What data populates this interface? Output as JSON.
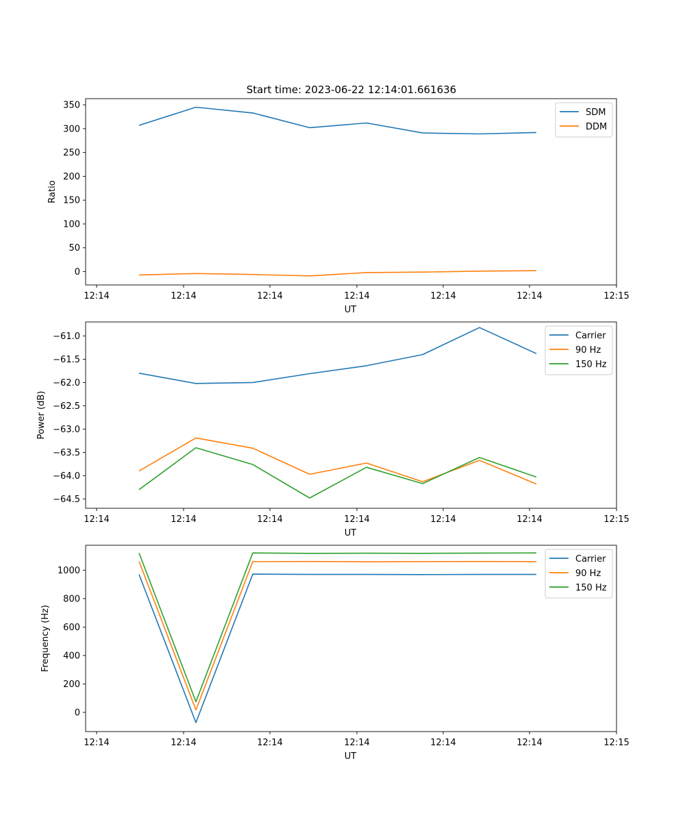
{
  "figure": {
    "title": "Start time: 2023-06-22 12:14:01.661636"
  },
  "colors": {
    "blue": "#1f77b4",
    "orange": "#ff7f0e",
    "green": "#2ca02c"
  },
  "chart_data": [
    {
      "type": "line",
      "title": "Start time: 2023-06-22 12:14:01.661636",
      "xlabel": "UT",
      "ylabel": "Ratio",
      "x_tick_labels": [
        "12:14",
        "12:14",
        "12:14",
        "12:14",
        "12:14",
        "12:14",
        "12:14",
        "12:15"
      ],
      "y_ticks": [
        0,
        50,
        100,
        150,
        200,
        250,
        300,
        350
      ],
      "ylim": [
        -28,
        363
      ],
      "legend": "top-right",
      "grid": false,
      "series": [
        {
          "name": "SDM",
          "color": "#1f77b4",
          "values": [
            307,
            345,
            333,
            302,
            312,
            291,
            289,
            292
          ]
        },
        {
          "name": "DDM",
          "color": "#ff7f0e",
          "values": [
            -7,
            -4,
            -6,
            -9,
            -2,
            -1,
            1,
            2
          ]
        }
      ]
    },
    {
      "type": "line",
      "xlabel": "UT",
      "ylabel": "Power (dB)",
      "x_tick_labels": [
        "12:14",
        "12:14",
        "12:14",
        "12:14",
        "12:14",
        "12:14",
        "12:14",
        "12:15"
      ],
      "y_ticks": [
        -64.5,
        -64.0,
        -63.5,
        -63.0,
        -62.5,
        -62.0,
        -61.5,
        -61.0
      ],
      "y_tick_labels": [
        "−64.5",
        "−64.0",
        "−63.5",
        "−63.0",
        "−62.5",
        "−62.0",
        "−61.5",
        "−61.0"
      ],
      "ylim": [
        -64.7,
        -60.7
      ],
      "legend": "top-right",
      "grid": false,
      "series": [
        {
          "name": "Carrier",
          "color": "#1f77b4",
          "values": [
            -61.8,
            -62.02,
            -62.0,
            -61.81,
            -61.64,
            -61.4,
            -60.82,
            -61.38
          ]
        },
        {
          "name": "90 Hz",
          "color": "#ff7f0e",
          "values": [
            -63.9,
            -63.19,
            -63.41,
            -63.97,
            -63.73,
            -64.13,
            -63.67,
            -64.18
          ]
        },
        {
          "name": "150 Hz",
          "color": "#2ca02c",
          "values": [
            -64.3,
            -63.4,
            -63.76,
            -64.48,
            -63.82,
            -64.17,
            -63.61,
            -64.03
          ]
        }
      ]
    },
    {
      "type": "line",
      "xlabel": "UT",
      "ylabel": "Frequency (Hz)",
      "x_tick_labels": [
        "12:14",
        "12:14",
        "12:14",
        "12:14",
        "12:14",
        "12:14",
        "12:14",
        "12:15"
      ],
      "y_ticks": [
        0,
        200,
        400,
        600,
        800,
        1000
      ],
      "y_tick_labels": [
        "0",
        "200",
        "400",
        "600",
        "800",
        "1000"
      ],
      "ylim": [
        -135,
        1175
      ],
      "legend": "top-right",
      "grid": false,
      "series": [
        {
          "name": "Carrier",
          "color": "#1f77b4",
          "values": [
            970,
            -72,
            972,
            970,
            970,
            969,
            970,
            970
          ]
        },
        {
          "name": "90 Hz",
          "color": "#ff7f0e",
          "values": [
            1062,
            17,
            1060,
            1061,
            1059,
            1060,
            1061,
            1060
          ]
        },
        {
          "name": "150 Hz",
          "color": "#2ca02c",
          "values": [
            1120,
            75,
            1121,
            1118,
            1119,
            1118,
            1120,
            1121
          ]
        }
      ]
    }
  ]
}
